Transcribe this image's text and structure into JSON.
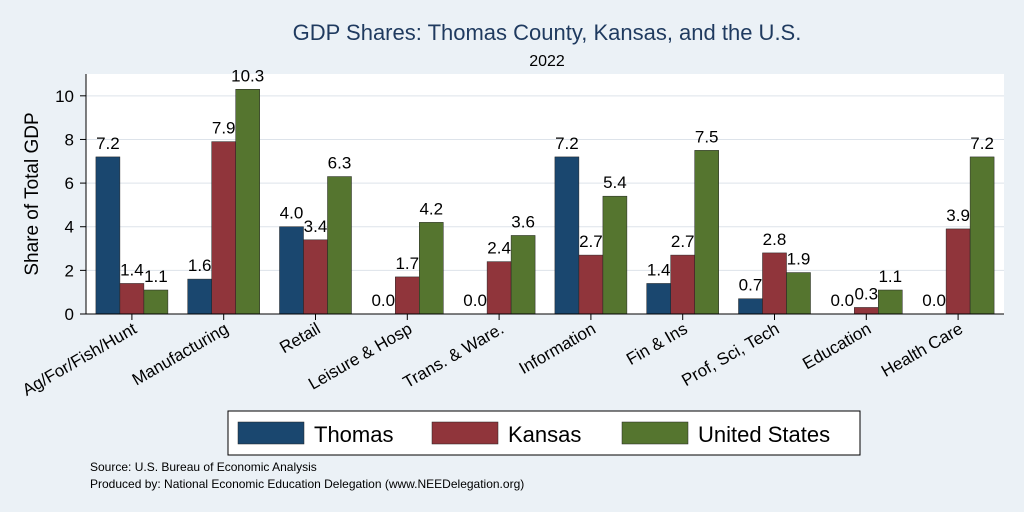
{
  "chart_data": {
    "type": "bar",
    "title": "GDP Shares: Thomas County, Kansas, and the U.S.",
    "subtitle": "2022",
    "ylabel": "Share of Total GDP",
    "ylim": [
      0,
      11
    ],
    "yticks": [
      0,
      2,
      4,
      6,
      8,
      10
    ],
    "grid": true,
    "legend_position": "bottom",
    "categories": [
      "Ag/For/Fish/Hunt",
      "Manufacturing",
      "Retail",
      "Leisure & Hosp",
      "Trans. & Ware.",
      "Information",
      "Fin & Ins",
      "Prof, Sci, Tech",
      "Education",
      "Health Care"
    ],
    "series": [
      {
        "name": "Thomas",
        "color": "#1a476f",
        "values": [
          7.2,
          1.6,
          4.0,
          0.0,
          0.0,
          7.2,
          1.4,
          0.7,
          0.0,
          0.0
        ],
        "labels": [
          "7.2",
          "1.6",
          "4.0",
          "0.0",
          "0.0",
          "7.2",
          "1.4",
          "0.7",
          "0.0",
          "0.0"
        ]
      },
      {
        "name": "Kansas",
        "color": "#90353b",
        "values": [
          1.4,
          7.9,
          3.4,
          1.7,
          2.4,
          2.7,
          2.7,
          2.8,
          0.3,
          3.9
        ],
        "labels": [
          "1.4",
          "7.9",
          "3.4",
          "1.7",
          "2.4",
          "2.7",
          "2.7",
          "2.8",
          "0.3",
          "3.9"
        ]
      },
      {
        "name": "United States",
        "color": "#55752f",
        "values": [
          1.1,
          10.3,
          6.3,
          4.2,
          3.6,
          5.4,
          7.5,
          1.9,
          1.1,
          7.2
        ],
        "labels": [
          "1.1",
          "10.3",
          "6.3",
          "4.2",
          "3.6",
          "5.4",
          "7.5",
          "1.9",
          "1.1",
          "7.2"
        ]
      }
    ]
  },
  "footer": {
    "source": "Source: U.S. Bureau of Economic Analysis",
    "produced_by": "Produced by: National Economic Education Delegation (www.NEEDelegation.org)"
  }
}
